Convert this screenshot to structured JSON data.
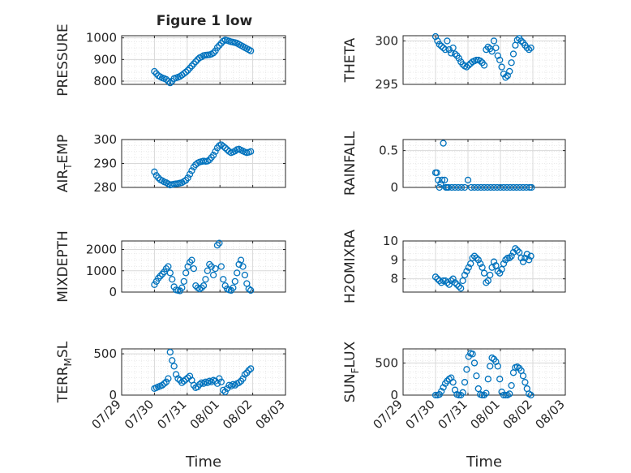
{
  "figure": {
    "title": "Figure 1 low",
    "marker_color": "#0072BD",
    "grid_color": "#d9d9d9",
    "axis_color": "#262626"
  },
  "chart_data": [
    {
      "type": "scatter",
      "ylabel": "PRESSURE",
      "xlabel": "",
      "xlim": [
        -1,
        4
      ],
      "ylim": [
        785,
        1010
      ],
      "yticks": [
        800,
        900,
        1000
      ],
      "ytick_labels": [
        "800",
        "900",
        "1000"
      ],
      "x": [
        0.0,
        0.06,
        0.12,
        0.18,
        0.24,
        0.3,
        0.36,
        0.42,
        0.48,
        0.54,
        0.6,
        0.66,
        0.72,
        0.78,
        0.84,
        0.9,
        0.96,
        1.02,
        1.08,
        1.14,
        1.2,
        1.26,
        1.32,
        1.38,
        1.44,
        1.5,
        1.56,
        1.62,
        1.68,
        1.74,
        1.8,
        1.86,
        1.92,
        1.98,
        2.04,
        2.1,
        2.16,
        2.22,
        2.28,
        2.34,
        2.4,
        2.46,
        2.52,
        2.58,
        2.64,
        2.7,
        2.76,
        2.82,
        2.88,
        2.94
      ],
      "y": [
        845,
        835,
        825,
        820,
        815,
        812,
        808,
        800,
        792,
        800,
        812,
        815,
        818,
        822,
        828,
        835,
        842,
        850,
        860,
        870,
        880,
        890,
        900,
        908,
        912,
        918,
        920,
        921,
        922,
        925,
        930,
        940,
        955,
        965,
        975,
        985,
        990,
        988,
        985,
        982,
        980,
        978,
        975,
        970,
        965,
        960,
        955,
        950,
        945,
        940
      ]
    },
    {
      "type": "scatter",
      "ylabel": "THETA",
      "xlabel": "",
      "xlim": [
        -1,
        4
      ],
      "ylim": [
        295,
        300.6
      ],
      "yticks": [
        295,
        300
      ],
      "ytick_labels": [
        "295",
        "300"
      ],
      "x": [
        0.0,
        0.06,
        0.12,
        0.18,
        0.24,
        0.3,
        0.36,
        0.42,
        0.48,
        0.54,
        0.6,
        0.66,
        0.72,
        0.78,
        0.84,
        0.9,
        0.96,
        1.02,
        1.08,
        1.14,
        1.2,
        1.26,
        1.32,
        1.38,
        1.44,
        1.5,
        1.56,
        1.62,
        1.68,
        1.74,
        1.8,
        1.86,
        1.92,
        1.98,
        2.04,
        2.1,
        2.16,
        2.22,
        2.28,
        2.34,
        2.4,
        2.46,
        2.52,
        2.58,
        2.64,
        2.7,
        2.76,
        2.82,
        2.88,
        2.94
      ],
      "y": [
        300.5,
        300.0,
        299.6,
        299.4,
        299.2,
        299.0,
        300.0,
        299.0,
        298.6,
        299.2,
        298.5,
        298.3,
        298.0,
        297.6,
        297.3,
        297.1,
        297.0,
        297.2,
        297.4,
        297.6,
        297.7,
        297.8,
        297.8,
        297.7,
        297.5,
        297.2,
        299.0,
        299.3,
        299.1,
        298.8,
        300.0,
        299.2,
        298.3,
        297.8,
        297.0,
        296.2,
        295.8,
        296.0,
        296.5,
        297.5,
        298.5,
        299.5,
        300.1,
        300.3,
        300.0,
        299.8,
        299.5,
        299.2,
        299.0,
        299.2
      ]
    },
    {
      "type": "scatter",
      "ylabel": "AIR_TEMP",
      "ylabel_main": "AIR",
      "ylabel_sub": "T",
      "ylabel_rest": "EMP",
      "xlabel": "",
      "xlim": [
        -1,
        4
      ],
      "ylim": [
        280,
        300
      ],
      "yticks": [
        280,
        290,
        300
      ],
      "ytick_labels": [
        "280",
        "290",
        "300"
      ],
      "x": [
        0.0,
        0.06,
        0.12,
        0.18,
        0.24,
        0.3,
        0.36,
        0.42,
        0.48,
        0.54,
        0.6,
        0.66,
        0.72,
        0.78,
        0.84,
        0.9,
        0.96,
        1.02,
        1.08,
        1.14,
        1.2,
        1.26,
        1.32,
        1.38,
        1.44,
        1.5,
        1.56,
        1.62,
        1.68,
        1.74,
        1.8,
        1.86,
        1.92,
        1.98,
        2.04,
        2.1,
        2.16,
        2.22,
        2.28,
        2.34,
        2.4,
        2.46,
        2.52,
        2.58,
        2.64,
        2.7,
        2.76,
        2.82,
        2.88,
        2.94
      ],
      "y": [
        286.5,
        285.0,
        284.0,
        283.2,
        282.8,
        282.3,
        282.0,
        281.5,
        281.0,
        281.2,
        281.4,
        281.5,
        281.6,
        281.8,
        282.0,
        282.5,
        283.0,
        284.0,
        285.5,
        287.0,
        288.5,
        289.5,
        290.2,
        290.6,
        290.8,
        291.0,
        290.9,
        291.0,
        291.5,
        292.5,
        293.5,
        295.0,
        296.5,
        297.5,
        297.8,
        297.2,
        296.5,
        295.8,
        295.0,
        294.5,
        294.8,
        295.2,
        295.8,
        296.0,
        295.6,
        295.2,
        294.8,
        294.5,
        294.7,
        295.0
      ]
    },
    {
      "type": "scatter",
      "ylabel": "RAINFALL",
      "xlabel": "",
      "xlim": [
        -1,
        4
      ],
      "ylim": [
        0,
        0.65
      ],
      "yticks": [
        0,
        0.5
      ],
      "ytick_labels": [
        "0",
        "0.5"
      ],
      "x": [
        0.0,
        0.04,
        0.08,
        0.12,
        0.16,
        0.2,
        0.24,
        0.28,
        0.32,
        0.36,
        0.4,
        0.5,
        0.6,
        0.7,
        0.8,
        0.9,
        1.0,
        1.1,
        1.2,
        1.3,
        1.4,
        1.5,
        1.6,
        1.7,
        1.8,
        1.9,
        2.0,
        2.1,
        2.2,
        2.3,
        2.4,
        2.5,
        2.6,
        2.7,
        2.8,
        2.9,
        2.96
      ],
      "y": [
        0.2,
        0.2,
        0.1,
        0,
        0.05,
        0.1,
        0.6,
        0.1,
        0,
        0,
        0,
        0,
        0,
        0,
        0,
        0,
        0.1,
        0,
        0,
        0,
        0,
        0,
        0,
        0,
        0,
        0,
        0,
        0,
        0,
        0,
        0,
        0,
        0,
        0,
        0,
        0,
        0
      ]
    },
    {
      "type": "scatter",
      "ylabel": "MIXDEPTH",
      "xlabel": "",
      "xlim": [
        -1,
        4
      ],
      "ylim": [
        0,
        2400
      ],
      "yticks": [
        0,
        1000,
        2000
      ],
      "ytick_labels": [
        "0",
        "1000",
        "2000"
      ],
      "x": [
        0.0,
        0.06,
        0.12,
        0.18,
        0.24,
        0.3,
        0.36,
        0.42,
        0.48,
        0.54,
        0.6,
        0.66,
        0.72,
        0.78,
        0.84,
        0.9,
        0.96,
        1.02,
        1.08,
        1.14,
        1.2,
        1.26,
        1.32,
        1.38,
        1.44,
        1.5,
        1.56,
        1.62,
        1.68,
        1.74,
        1.8,
        1.86,
        1.92,
        1.98,
        2.04,
        2.1,
        2.16,
        2.22,
        2.28,
        2.34,
        2.4,
        2.46,
        2.52,
        2.58,
        2.64,
        2.7,
        2.76,
        2.82,
        2.88,
        2.94
      ],
      "y": [
        350,
        500,
        650,
        750,
        850,
        950,
        1100,
        1200,
        900,
        600,
        250,
        100,
        80,
        60,
        200,
        500,
        900,
        1200,
        1400,
        1500,
        1100,
        300,
        200,
        150,
        200,
        300,
        600,
        1000,
        1300,
        1200,
        800,
        1100,
        2200,
        2300,
        1200,
        600,
        300,
        150,
        100,
        80,
        200,
        500,
        900,
        1300,
        1500,
        1200,
        800,
        400,
        150,
        80
      ]
    },
    {
      "type": "scatter",
      "ylabel": "H2OMIXRA",
      "xlabel": "",
      "xlim": [
        -1,
        4
      ],
      "ylim": [
        7.3,
        10
      ],
      "yticks": [
        8,
        9,
        10
      ],
      "ytick_labels": [
        "8",
        "9",
        "10"
      ],
      "x": [
        0.0,
        0.06,
        0.12,
        0.18,
        0.24,
        0.3,
        0.36,
        0.42,
        0.48,
        0.54,
        0.6,
        0.66,
        0.72,
        0.78,
        0.84,
        0.9,
        0.96,
        1.02,
        1.08,
        1.14,
        1.2,
        1.26,
        1.32,
        1.38,
        1.44,
        1.5,
        1.56,
        1.62,
        1.68,
        1.74,
        1.8,
        1.86,
        1.92,
        1.98,
        2.04,
        2.1,
        2.16,
        2.22,
        2.28,
        2.34,
        2.4,
        2.46,
        2.52,
        2.58,
        2.64,
        2.7,
        2.76,
        2.82,
        2.88,
        2.94
      ],
      "y": [
        8.1,
        8.0,
        7.9,
        7.8,
        7.9,
        7.9,
        7.8,
        7.7,
        7.9,
        8.0,
        7.8,
        7.7,
        7.6,
        7.5,
        7.9,
        8.2,
        8.4,
        8.6,
        8.8,
        9.1,
        9.2,
        9.1,
        9.0,
        8.8,
        8.6,
        8.3,
        7.8,
        7.9,
        8.2,
        8.6,
        8.9,
        8.7,
        8.4,
        8.3,
        8.5,
        8.8,
        9.0,
        9.1,
        9.1,
        9.2,
        9.4,
        9.6,
        9.5,
        9.4,
        9.1,
        8.9,
        9.1,
        9.3,
        9.0,
        9.2
      ]
    },
    {
      "type": "scatter",
      "ylabel": "TERR_MSL",
      "ylabel_main": "TERR",
      "ylabel_sub": "M",
      "ylabel_rest": "SL",
      "xlabel": "Time",
      "xlim": [
        -1,
        4
      ],
      "ylim": [
        0,
        560
      ],
      "yticks": [
        0,
        500
      ],
      "ytick_labels": [
        "0",
        "500"
      ],
      "xticks": [
        -1,
        0,
        1,
        2,
        3,
        4
      ],
      "xtick_labels": [
        "07/29",
        "07/30",
        "07/31",
        "08/01",
        "08/02",
        "08/03"
      ],
      "x": [
        0.0,
        0.06,
        0.12,
        0.18,
        0.24,
        0.3,
        0.36,
        0.42,
        0.48,
        0.54,
        0.6,
        0.66,
        0.72,
        0.78,
        0.84,
        0.9,
        0.96,
        1.02,
        1.08,
        1.14,
        1.2,
        1.26,
        1.32,
        1.38,
        1.44,
        1.5,
        1.56,
        1.62,
        1.68,
        1.74,
        1.8,
        1.86,
        1.92,
        1.98,
        2.04,
        2.1,
        2.16,
        2.22,
        2.28,
        2.34,
        2.4,
        2.46,
        2.52,
        2.58,
        2.64,
        2.7,
        2.76,
        2.82,
        2.88,
        2.94
      ],
      "y": [
        80,
        90,
        100,
        110,
        120,
        140,
        160,
        200,
        520,
        420,
        350,
        250,
        200,
        180,
        150,
        170,
        190,
        210,
        230,
        180,
        120,
        90,
        100,
        130,
        150,
        140,
        160,
        150,
        170,
        160,
        180,
        170,
        140,
        200,
        160,
        60,
        40,
        80,
        120,
        110,
        130,
        120,
        140,
        150,
        170,
        200,
        250,
        270,
        300,
        320
      ]
    },
    {
      "type": "scatter",
      "ylabel": "SUN_FLUX",
      "ylabel_main": "SUN",
      "ylabel_sub": "F",
      "ylabel_rest": "LUX",
      "xlabel": "Time",
      "xlim": [
        -1,
        4
      ],
      "ylim": [
        0,
        720
      ],
      "yticks": [
        0,
        500
      ],
      "ytick_labels": [
        "0",
        "500"
      ],
      "xticks": [
        -1,
        0,
        1,
        2,
        3,
        4
      ],
      "xtick_labels": [
        "07/29",
        "07/30",
        "07/31",
        "08/01",
        "08/02",
        "08/03"
      ],
      "x": [
        0.0,
        0.06,
        0.12,
        0.18,
        0.24,
        0.3,
        0.36,
        0.42,
        0.48,
        0.54,
        0.6,
        0.66,
        0.72,
        0.78,
        0.84,
        0.9,
        0.96,
        1.02,
        1.08,
        1.14,
        1.2,
        1.26,
        1.32,
        1.38,
        1.44,
        1.5,
        1.56,
        1.62,
        1.68,
        1.74,
        1.8,
        1.86,
        1.92,
        1.98,
        2.04,
        2.1,
        2.16,
        2.22,
        2.28,
        2.34,
        2.4,
        2.46,
        2.52,
        2.58,
        2.64,
        2.7,
        2.76,
        2.82,
        2.88,
        2.94
      ],
      "y": [
        0,
        0,
        10,
        60,
        120,
        180,
        220,
        250,
        270,
        200,
        80,
        10,
        0,
        0,
        40,
        200,
        400,
        600,
        650,
        640,
        500,
        300,
        100,
        10,
        0,
        0,
        30,
        250,
        450,
        580,
        560,
        520,
        450,
        250,
        50,
        0,
        0,
        0,
        20,
        150,
        350,
        430,
        440,
        420,
        380,
        300,
        200,
        100,
        20,
        0
      ]
    }
  ]
}
